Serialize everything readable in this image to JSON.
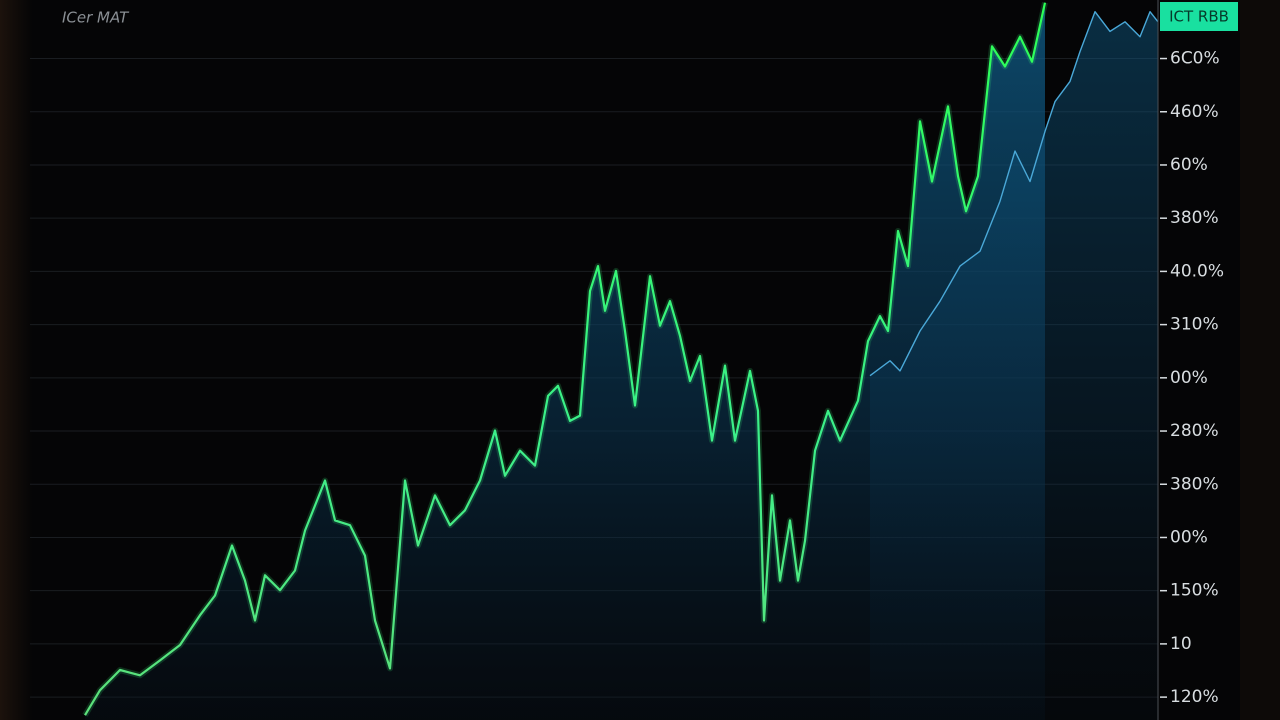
{
  "chart_data": {
    "type": "line",
    "title": "ICer MAT",
    "badge": "ICT RBB",
    "xlim": [
      0,
      1128
    ],
    "ylim": [
      -0.43,
      13.1
    ],
    "yticks": [
      {
        "value": 0,
        "label": "120%"
      },
      {
        "value": 1,
        "label": "10"
      },
      {
        "value": 2,
        "label": "150%"
      },
      {
        "value": 3,
        "label": "00%"
      },
      {
        "value": 4,
        "label": "380%"
      },
      {
        "value": 5,
        "label": "280%"
      },
      {
        "value": 6,
        "label": "00%"
      },
      {
        "value": 7,
        "label": "310%"
      },
      {
        "value": 8,
        "label": "40.0%"
      },
      {
        "value": 9,
        "label": "380%"
      },
      {
        "value": 10,
        "label": "60%"
      },
      {
        "value": 11,
        "label": "460%"
      },
      {
        "value": 12,
        "label": "6C0%"
      }
    ],
    "grid": true,
    "series": [
      {
        "color": "#39f07a",
        "x": [
          55,
          70,
          90,
          110,
          130,
          150,
          170,
          185,
          202,
          215,
          225,
          235,
          250,
          265,
          275,
          295,
          305,
          320,
          335,
          345,
          360,
          375,
          388,
          405,
          420,
          435,
          450,
          465,
          475,
          490,
          505,
          518,
          528,
          540,
          550,
          560,
          568,
          575,
          586,
          595,
          605,
          620,
          630,
          640,
          650,
          660,
          670,
          682,
          695,
          705,
          720,
          728,
          734,
          742,
          750,
          760,
          768,
          775,
          785,
          798,
          810,
          828,
          838,
          850,
          858,
          868,
          878,
          890,
          902,
          918,
          928,
          936,
          948,
          962,
          975,
          990,
          1002,
          1015
        ],
        "values": [
          -0.34,
          0.13,
          0.51,
          0.41,
          0.69,
          0.98,
          1.54,
          1.91,
          2.85,
          2.19,
          1.44,
          2.29,
          2.01,
          2.38,
          3.13,
          4.07,
          3.32,
          3.23,
          2.66,
          1.44,
          0.54,
          4.07,
          2.85,
          3.79,
          3.23,
          3.51,
          4.07,
          5.01,
          4.16,
          4.63,
          4.35,
          5.66,
          5.85,
          5.19,
          5.29,
          7.63,
          8.1,
          7.26,
          8.01,
          6.88,
          5.48,
          7.91,
          6.98,
          7.44,
          6.79,
          5.94,
          6.41,
          4.82,
          6.23,
          4.82,
          6.13,
          5.38,
          1.44,
          3.79,
          2.19,
          3.32,
          2.19,
          2.94,
          4.63,
          5.38,
          4.82,
          5.57,
          6.69,
          7.16,
          6.88,
          8.76,
          8.1,
          10.82,
          9.69,
          11.1,
          9.79,
          9.13,
          9.79,
          12.23,
          11.85,
          12.41,
          11.94,
          13.05
        ]
      },
      {
        "color": "#4aa8d8",
        "x": [
          840,
          860,
          870,
          890,
          910,
          930,
          950,
          970,
          985,
          1000,
          1015,
          1025,
          1040,
          1050,
          1065,
          1080,
          1095,
          1110,
          1120,
          1128
        ],
        "values": [
          6.04,
          6.32,
          6.13,
          6.88,
          7.44,
          8.1,
          8.38,
          9.32,
          10.26,
          9.69,
          10.63,
          11.19,
          11.57,
          12.13,
          12.88,
          12.51,
          12.69,
          12.41,
          12.88,
          12.69
        ]
      }
    ]
  }
}
